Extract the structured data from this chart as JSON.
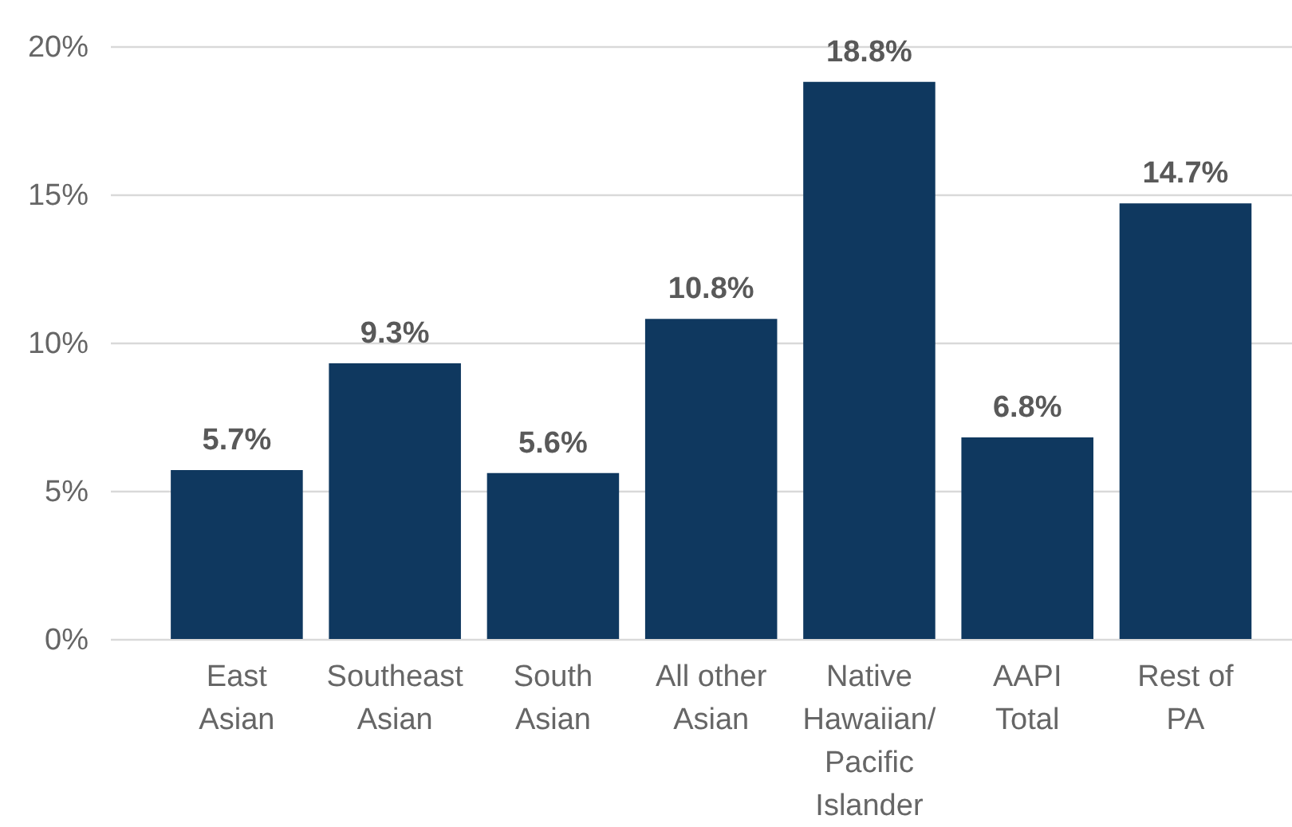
{
  "chart_data": {
    "type": "bar",
    "categories": [
      "East Asian",
      "Southeast Asian",
      "South Asian",
      "All other Asian",
      "Native Hawaiian/ Pacific Islander",
      "AAPI Total",
      "Rest of PA"
    ],
    "values": [
      5.7,
      9.3,
      5.6,
      10.8,
      18.8,
      6.8,
      14.7
    ],
    "value_labels": [
      "5.7%",
      "9.3%",
      "5.6%",
      "10.8%",
      "18.8%",
      "6.8%",
      "14.7%"
    ],
    "color": "#0f385f",
    "ylim": [
      0,
      20
    ],
    "yticks": [
      {
        "value": 0,
        "label": "0%"
      },
      {
        "value": 5,
        "label": "5%"
      },
      {
        "value": 10,
        "label": "10%"
      },
      {
        "value": 15,
        "label": "15%"
      },
      {
        "value": 20,
        "label": "20%"
      }
    ],
    "grid": "y"
  }
}
